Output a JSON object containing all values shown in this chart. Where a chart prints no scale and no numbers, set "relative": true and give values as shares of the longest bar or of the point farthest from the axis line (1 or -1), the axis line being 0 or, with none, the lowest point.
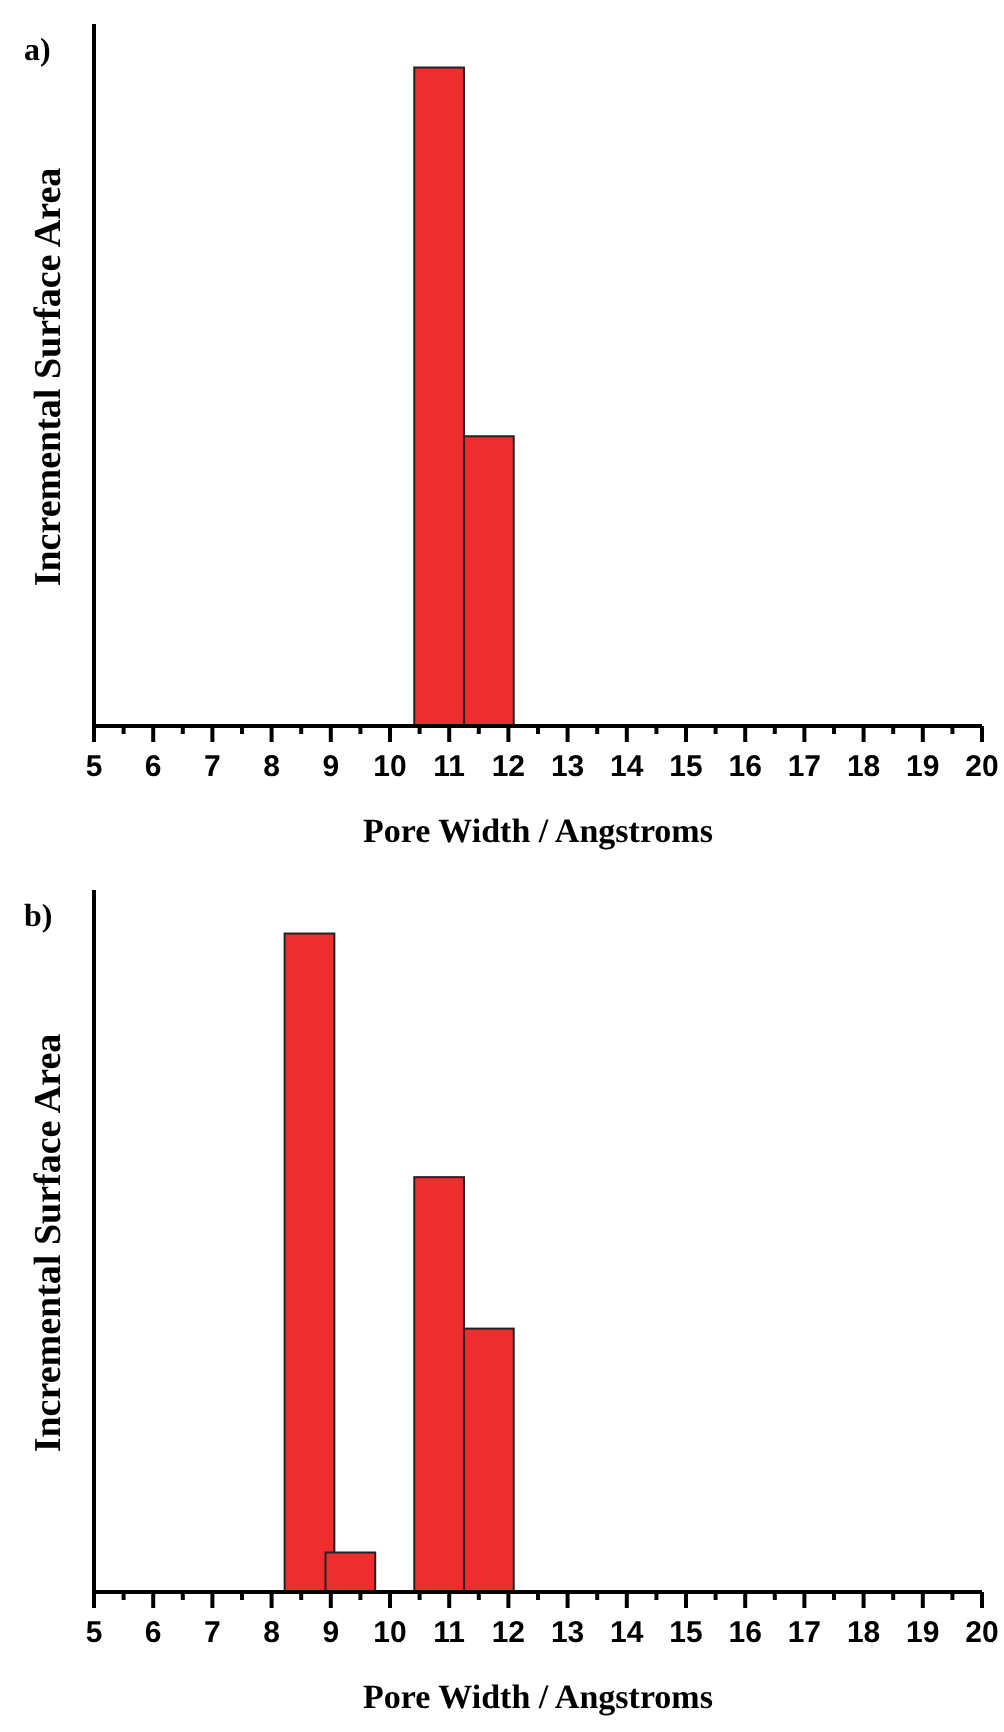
{
  "chart_data": [
    {
      "type": "bar",
      "title": "a)",
      "xlabel": "Pore Width / Angstroms",
      "ylabel": "Incremental Surface Area",
      "relative": true,
      "x": [
        10.83,
        11.67
      ],
      "values": [
        1,
        0.44
      ],
      "color": "#ee2e2e",
      "xlim": [
        5,
        20
      ],
      "xticks": [
        5,
        {
          "value": 5.5,
          "label": null
        },
        6,
        {
          "value": 6.5,
          "label": null
        },
        7,
        {
          "value": 7.5,
          "label": null
        },
        8,
        {
          "value": 8.5,
          "label": null
        },
        9,
        {
          "value": 9.5,
          "label": null
        },
        10,
        {
          "value": 10.5,
          "label": null
        },
        11,
        {
          "value": 11.5,
          "label": null
        },
        12,
        {
          "value": 12.5,
          "label": null
        },
        13,
        {
          "value": 13.5,
          "label": null
        },
        14,
        {
          "value": 14.5,
          "label": null
        },
        15,
        {
          "value": 15.5,
          "label": null
        },
        16,
        {
          "value": 16.5,
          "label": null
        },
        17,
        {
          "value": 17.5,
          "label": null
        },
        18,
        {
          "value": 18.5,
          "label": null
        },
        19,
        {
          "value": 19.5,
          "label": null
        },
        20
      ]
    },
    {
      "type": "bar",
      "title": "b)",
      "xlabel": "Pore Width / Angstroms",
      "ylabel": "Incremental Surface Area",
      "relative": true,
      "x": [
        8.64,
        9.33,
        10.83,
        11.67
      ],
      "values": [
        1,
        0.06,
        0.63,
        0.4
      ],
      "color": "#ee2e2e",
      "xlim": [
        5,
        20
      ],
      "xticks": [
        5,
        {
          "value": 5.5,
          "label": null
        },
        6,
        {
          "value": 6.5,
          "label": null
        },
        7,
        {
          "value": 7.5,
          "label": null
        },
        8,
        {
          "value": 8.5,
          "label": null
        },
        9,
        {
          "value": 9.5,
          "label": null
        },
        10,
        {
          "value": 10.5,
          "label": null
        },
        11,
        {
          "value": 11.5,
          "label": null
        },
        12,
        {
          "value": 12.5,
          "label": null
        },
        13,
        {
          "value": 13.5,
          "label": null
        },
        14,
        {
          "value": 14.5,
          "label": null
        },
        15,
        {
          "value": 15.5,
          "label": null
        },
        16,
        {
          "value": 16.5,
          "label": null
        },
        17,
        {
          "value": 17.5,
          "label": null
        },
        18,
        {
          "value": 18.5,
          "label": null
        },
        19,
        {
          "value": 19.5,
          "label": null
        },
        20
      ]
    }
  ]
}
